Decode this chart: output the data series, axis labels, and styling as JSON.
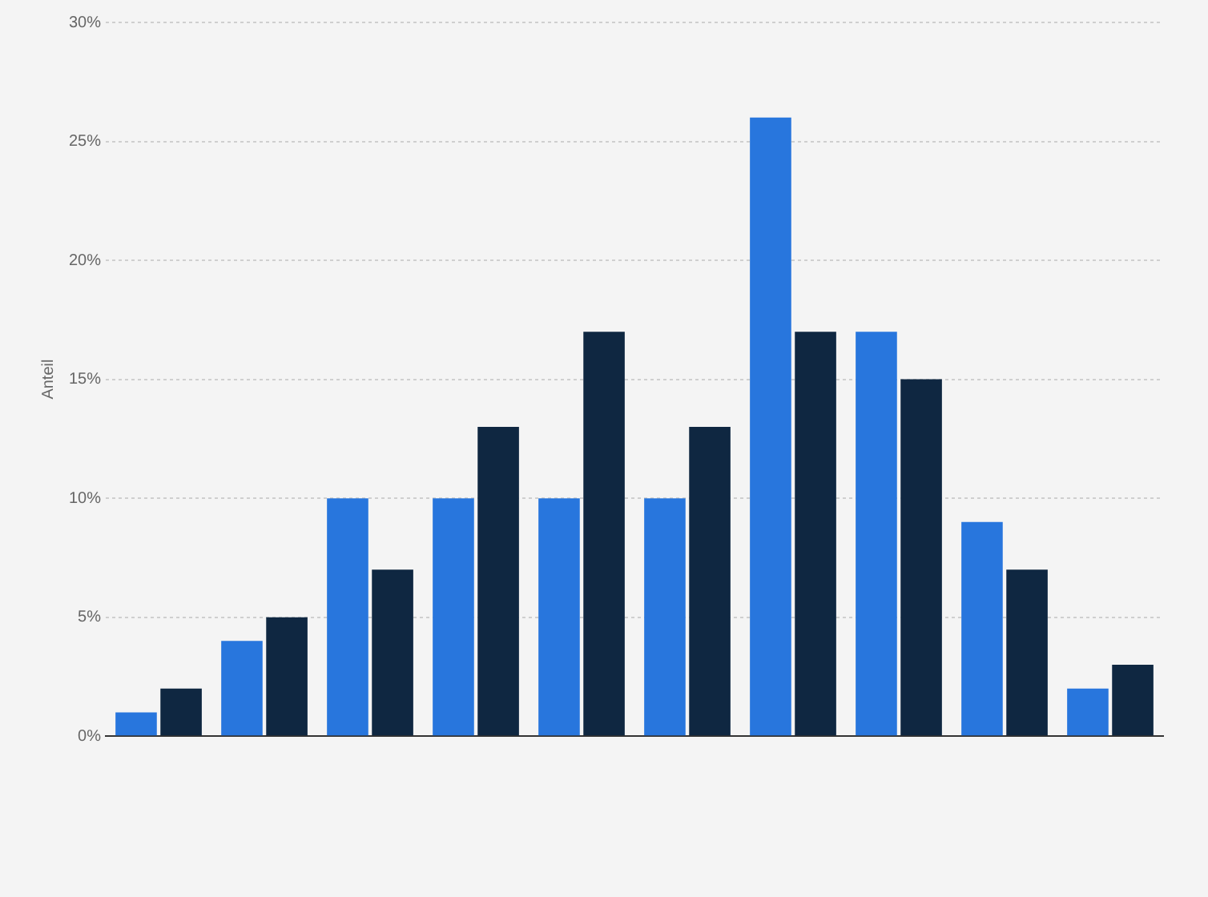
{
  "chart_data": {
    "type": "bar",
    "ylabel": "Anteil",
    "categories": [
      null,
      null,
      null,
      null,
      null,
      null,
      null,
      null,
      null,
      null
    ],
    "series": [
      {
        "color": "#2876dd",
        "values": [
          1,
          4,
          10,
          10,
          10,
          10,
          26,
          17,
          9,
          2
        ]
      },
      {
        "color": "#0f2741",
        "values": [
          2,
          5,
          7,
          13,
          17,
          13,
          17,
          15,
          7,
          3
        ]
      }
    ],
    "ylim": [
      0,
      30
    ],
    "yticks": [
      {
        "value": 0,
        "label": "0%"
      },
      {
        "value": 5,
        "label": "5%"
      },
      {
        "value": 10,
        "label": "10%"
      },
      {
        "value": 15,
        "label": "15%"
      },
      {
        "value": 20,
        "label": "20%"
      },
      {
        "value": 25,
        "label": "25%"
      },
      {
        "value": 30,
        "label": "30%"
      }
    ],
    "grid": "y",
    "legend": false
  }
}
